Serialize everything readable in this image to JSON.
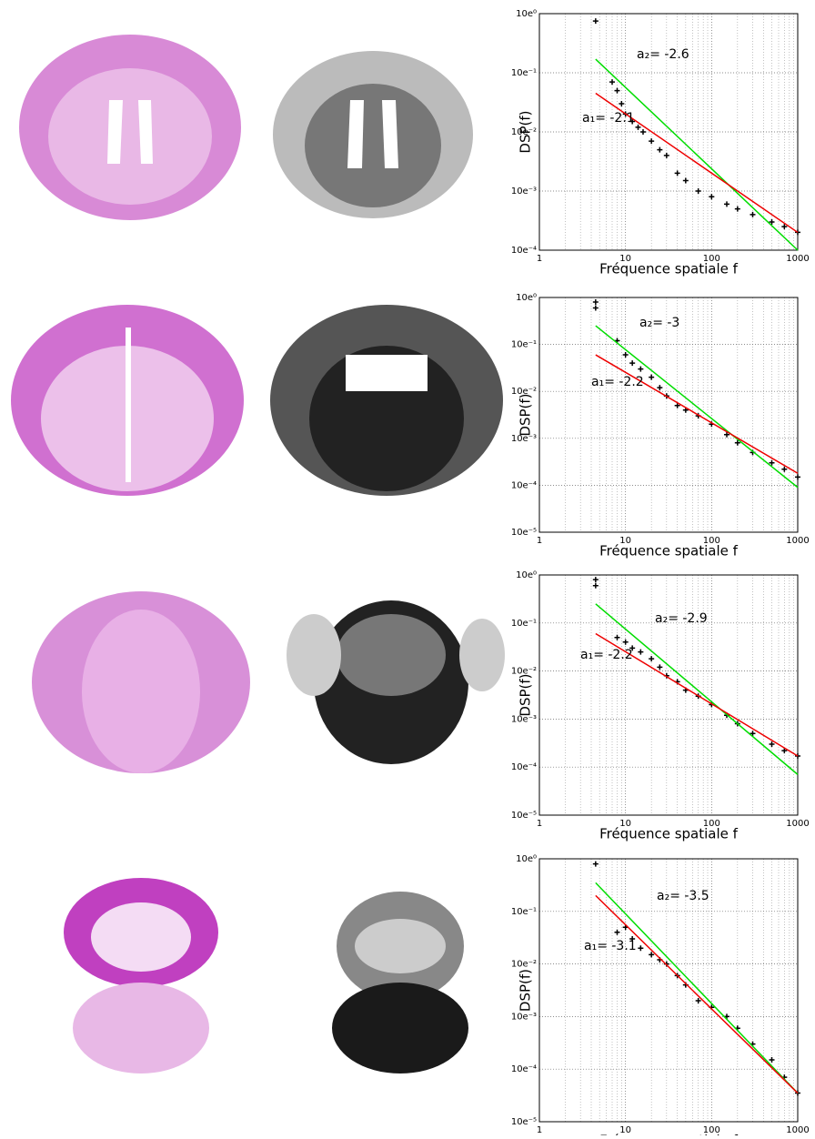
{
  "chart_data": [
    {
      "type": "scatter",
      "xscale": "log",
      "yscale": "log",
      "grid": true,
      "x_label": "Fréquence spatiale f",
      "y_label": "DSP(f)",
      "xlim": [
        1,
        1000
      ],
      "ylim": [
        0.0001,
        1
      ],
      "xticks": [
        1,
        10,
        100,
        1000
      ],
      "yticks": [
        {
          "value": 1,
          "label": "10e⁰"
        },
        {
          "value": 0.1,
          "label": "10e⁻¹"
        },
        {
          "value": 0.01,
          "label": "10e⁻²"
        },
        {
          "value": 0.001,
          "label": "10e⁻³"
        },
        {
          "value": 0.0001,
          "label": "10e⁻⁴"
        }
      ],
      "annotations": [
        "a₂= -2.6",
        "a₁= -2.1"
      ],
      "series": [
        {
          "type": "scatter",
          "color": "#000000",
          "x": [
            4.5,
            7,
            8,
            9,
            10,
            12,
            14,
            16,
            20,
            25,
            30,
            40,
            50,
            70,
            100,
            150,
            200,
            300,
            500,
            700,
            1000
          ],
          "values": [
            0.75,
            0.07,
            0.05,
            0.03,
            0.02,
            0.015,
            0.012,
            0.01,
            0.007,
            0.005,
            0.004,
            0.002,
            0.0015,
            0.001,
            0.0008,
            0.0006,
            0.0005,
            0.0004,
            0.0003,
            0.00025,
            0.0002
          ]
        },
        {
          "type": "line",
          "color": "#00dd00",
          "x": [
            4.5,
            1000
          ],
          "values": [
            0.17,
            0.0001
          ]
        },
        {
          "type": "line",
          "color": "#ee0000",
          "x": [
            4.5,
            1000
          ],
          "values": [
            0.045,
            0.0002
          ]
        }
      ]
    },
    {
      "type": "scatter",
      "xscale": "log",
      "yscale": "log",
      "grid": true,
      "x_label": "Fréquence spatiale f",
      "y_label": "DSP(f)",
      "xlim": [
        1,
        1000
      ],
      "ylim": [
        1e-05,
        1
      ],
      "xticks": [
        1,
        10,
        100,
        1000
      ],
      "yticks": [
        {
          "value": 1,
          "label": "10e⁰"
        },
        {
          "value": 0.1,
          "label": "10e⁻¹"
        },
        {
          "value": 0.01,
          "label": "10e⁻²"
        },
        {
          "value": 0.001,
          "label": "10e⁻³"
        },
        {
          "value": 0.0001,
          "label": "10e⁻⁴"
        },
        {
          "value": 1e-05,
          "label": "10e⁻⁵"
        }
      ],
      "annotations": [
        "a₂= -3",
        "a₁= -2.2"
      ],
      "series": [
        {
          "type": "scatter",
          "color": "#000000",
          "x": [
            4.5,
            4.5,
            8,
            10,
            12,
            15,
            20,
            25,
            30,
            40,
            50,
            70,
            100,
            150,
            200,
            300,
            500,
            700,
            1000
          ],
          "values": [
            0.8,
            0.6,
            0.12,
            0.06,
            0.04,
            0.03,
            0.02,
            0.012,
            0.008,
            0.005,
            0.004,
            0.003,
            0.002,
            0.0012,
            0.0008,
            0.0005,
            0.0003,
            0.00022,
            0.00015
          ]
        },
        {
          "type": "line",
          "color": "#00dd00",
          "x": [
            4.5,
            1000
          ],
          "values": [
            0.25,
            9e-05
          ]
        },
        {
          "type": "line",
          "color": "#ee0000",
          "x": [
            4.5,
            1000
          ],
          "values": [
            0.06,
            0.00018
          ]
        }
      ]
    },
    {
      "type": "scatter",
      "xscale": "log",
      "yscale": "log",
      "grid": true,
      "x_label": "Fréquence spatiale f",
      "y_label": "DSP(f)",
      "xlim": [
        1,
        1000
      ],
      "ylim": [
        1e-05,
        1
      ],
      "xticks": [
        1,
        10,
        100,
        1000
      ],
      "yticks": [
        {
          "value": 1,
          "label": "10e⁰"
        },
        {
          "value": 0.1,
          "label": "10e⁻¹"
        },
        {
          "value": 0.01,
          "label": "10e⁻²"
        },
        {
          "value": 0.001,
          "label": "10e⁻³"
        },
        {
          "value": 0.0001,
          "label": "10e⁻⁴"
        },
        {
          "value": 1e-05,
          "label": "10e⁻⁵"
        }
      ],
      "annotations": [
        "a₂= -2.9",
        "a₁= -2.2"
      ],
      "series": [
        {
          "type": "scatter",
          "color": "#000000",
          "x": [
            4.5,
            4.5,
            8,
            10,
            12,
            15,
            20,
            25,
            30,
            40,
            50,
            70,
            100,
            150,
            200,
            300,
            500,
            700,
            1000
          ],
          "values": [
            0.8,
            0.6,
            0.05,
            0.04,
            0.03,
            0.025,
            0.018,
            0.012,
            0.008,
            0.006,
            0.004,
            0.003,
            0.002,
            0.0012,
            0.0008,
            0.0005,
            0.0003,
            0.00022,
            0.00017
          ]
        },
        {
          "type": "line",
          "color": "#00dd00",
          "x": [
            4.5,
            1000
          ],
          "values": [
            0.25,
            7e-05
          ]
        },
        {
          "type": "line",
          "color": "#ee0000",
          "x": [
            4.5,
            1000
          ],
          "values": [
            0.06,
            0.00017
          ]
        }
      ]
    },
    {
      "type": "scatter",
      "xscale": "log",
      "yscale": "log",
      "grid": true,
      "x_label": "Fréquence spatiale f",
      "y_label": "DSP(f)",
      "xlim": [
        1,
        1000
      ],
      "ylim": [
        1e-05,
        1
      ],
      "xticks": [
        1,
        10,
        100,
        1000
      ],
      "yticks": [
        {
          "value": 1,
          "label": "10e⁰"
        },
        {
          "value": 0.1,
          "label": "10e⁻¹"
        },
        {
          "value": 0.01,
          "label": "10e⁻²"
        },
        {
          "value": 0.001,
          "label": "10e⁻³"
        },
        {
          "value": 0.0001,
          "label": "10e⁻⁴"
        },
        {
          "value": 1e-05,
          "label": "10e⁻⁵"
        }
      ],
      "annotations": [
        "a₂= -3.5",
        "a₁= -3.1"
      ],
      "series": [
        {
          "type": "scatter",
          "color": "#000000",
          "x": [
            4.5,
            8,
            10,
            12,
            15,
            20,
            25,
            30,
            40,
            50,
            70,
            100,
            150,
            200,
            300,
            500,
            700,
            1000
          ],
          "values": [
            0.8,
            0.04,
            0.05,
            0.03,
            0.02,
            0.015,
            0.012,
            0.01,
            0.006,
            0.004,
            0.002,
            0.0015,
            0.001,
            0.0006,
            0.0003,
            0.00015,
            7e-05,
            3.5e-05
          ]
        },
        {
          "type": "line",
          "color": "#00dd00",
          "x": [
            4.5,
            1000
          ],
          "values": [
            0.35,
            3.5e-05
          ]
        },
        {
          "type": "line",
          "color": "#ee0000",
          "x": [
            4.5,
            1000
          ],
          "values": [
            0.2,
            3.5e-05
          ]
        }
      ]
    }
  ]
}
